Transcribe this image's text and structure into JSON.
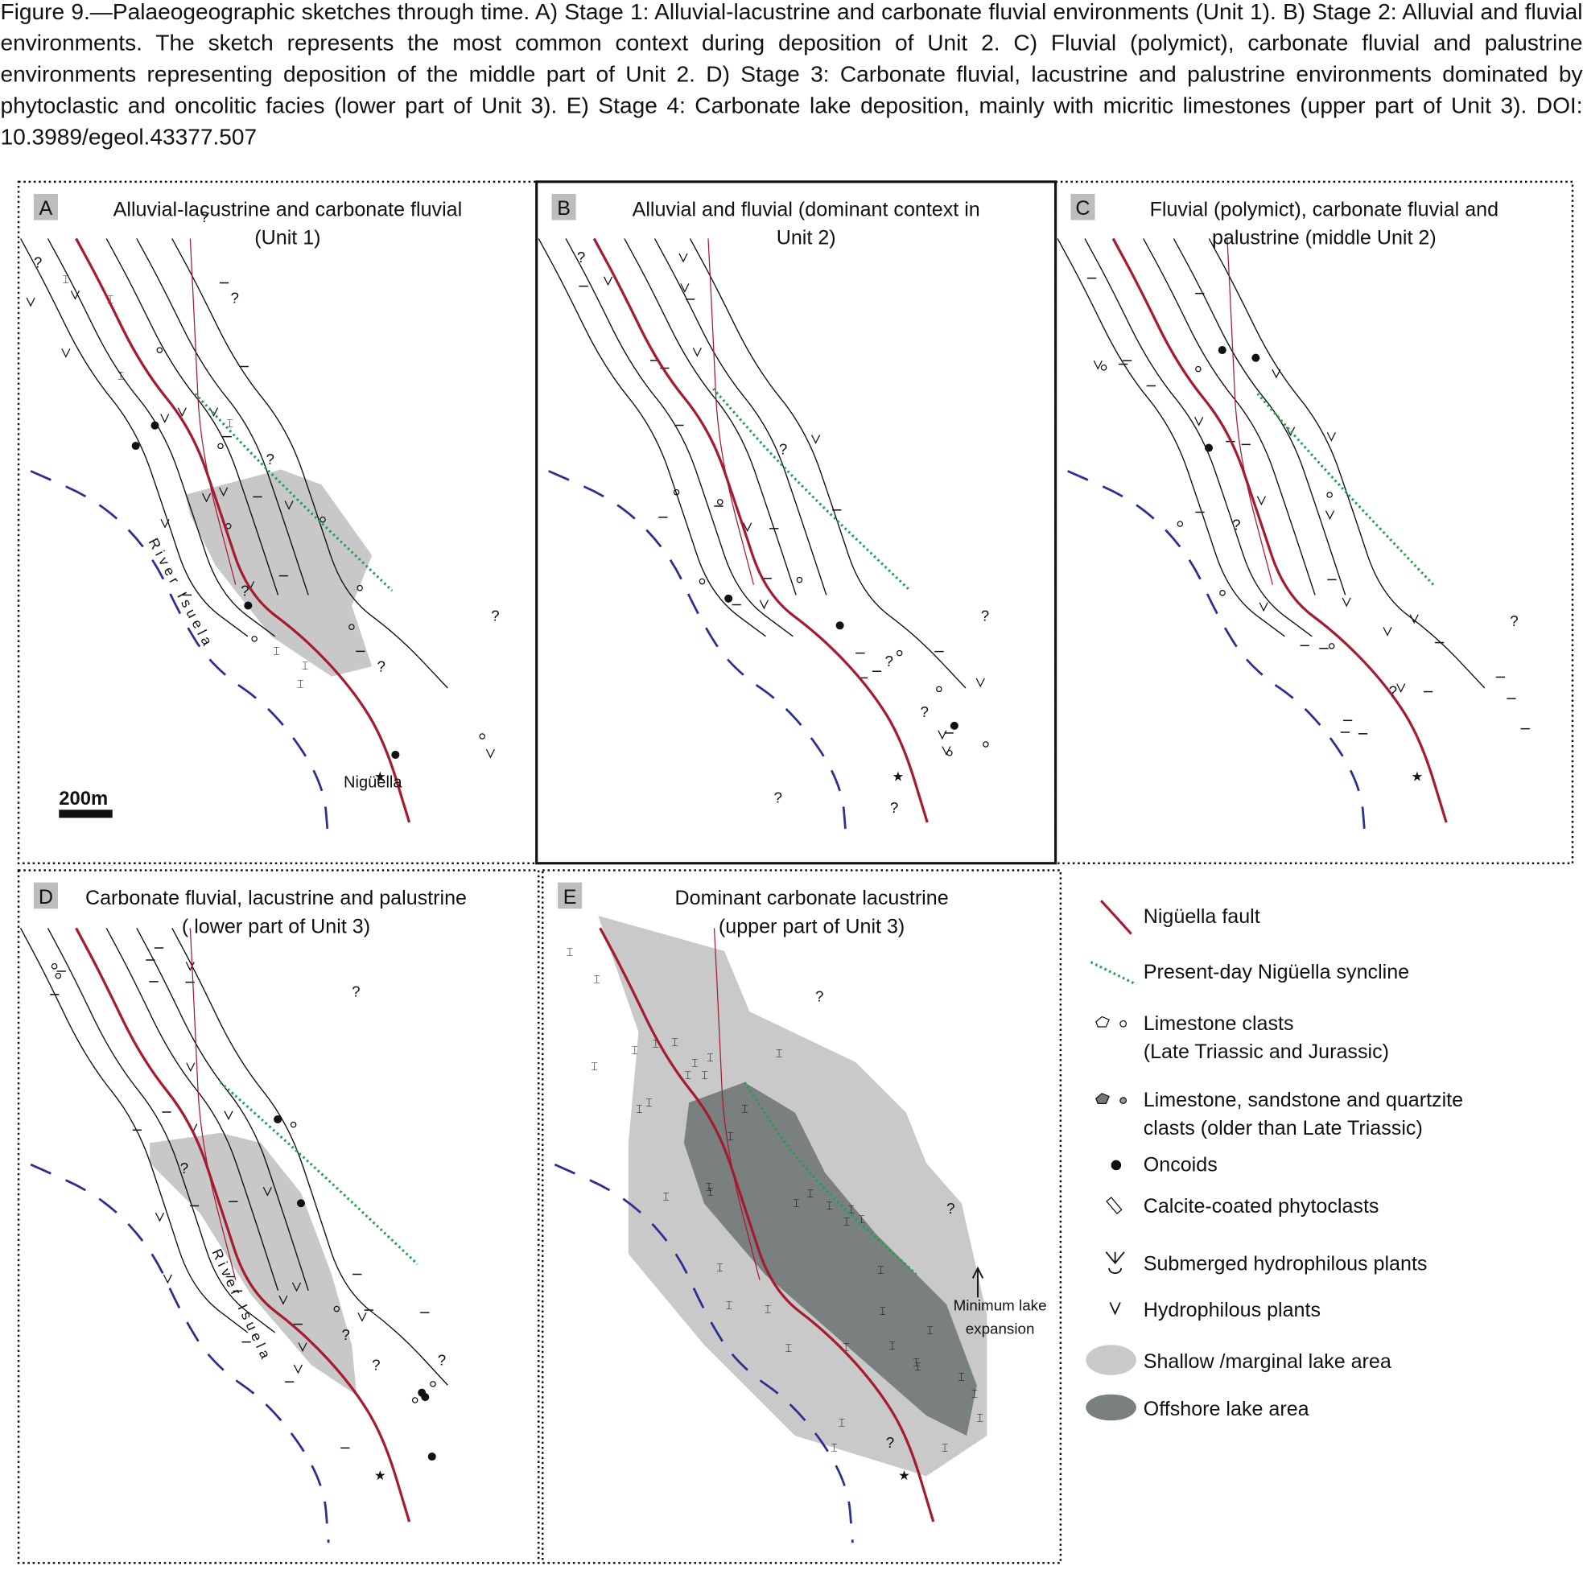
{
  "caption": "Figure 9.—Palaeogeographic sketches through time. A) Stage 1: Alluvial-lacustrine and carbonate fluvial environments (Unit 1). B) Stage 2: Alluvial and fluvial environments. The sketch represents the most common context during deposition of Unit 2. C) Fluvial (polymict), carbonate fluvial and palustrine environments representing deposition of the middle part of Unit 2. D) Stage 3: Carbonate fluvial, lacustrine and palustrine environments dominated by phytoclastic and oncolitic facies (lower part of Unit 3). E) Stage 4: Carbonate lake deposition, mainly with micritic limestones (upper part of Unit 3). DOI: 10.3989/egeol.43377.507",
  "panels": [
    {
      "letter": "A",
      "title": [
        "Alluvial-lacustrine and carbonate fluvial",
        "(Unit 1)"
      ]
    },
    {
      "letter": "B",
      "title": [
        "Alluvial and fluvial (dominant context in",
        "Unit 2)"
      ]
    },
    {
      "letter": "C",
      "title": [
        "Fluvial (polymict), carbonate fluvial and",
        "palustrine (middle Unit 2)"
      ]
    },
    {
      "letter": "D",
      "title": [
        "Carbonate fluvial, lacustrine and palustrine",
        "( lower part of Unit 3)"
      ]
    },
    {
      "letter": "E",
      "title": [
        "Dominant carbonate lacustrine",
        "(upper part of Unit 3)"
      ]
    }
  ],
  "map_labels": {
    "river": "River Isuela",
    "village": "Nigüella",
    "scale": "200m",
    "unknown": "?",
    "lake_note": [
      "Minimum lake",
      "expansion"
    ]
  },
  "legend": [
    [
      "Nigüella fault"
    ],
    [
      "Present-day Nigüella syncline"
    ],
    [
      "Limestone clasts",
      "(Late Triassic and Jurassic)"
    ],
    [
      "Limestone, sandstone and quartzite",
      "clasts (older than Late Triassic)"
    ],
    [
      "Oncoids"
    ],
    [
      "Calcite-coated phytoclasts"
    ],
    [
      "Submerged hydrophilous plants"
    ],
    [
      "Hydrophilous plants"
    ],
    [
      "Shallow /marginal lake area"
    ],
    [
      "Offshore lake area"
    ]
  ]
}
